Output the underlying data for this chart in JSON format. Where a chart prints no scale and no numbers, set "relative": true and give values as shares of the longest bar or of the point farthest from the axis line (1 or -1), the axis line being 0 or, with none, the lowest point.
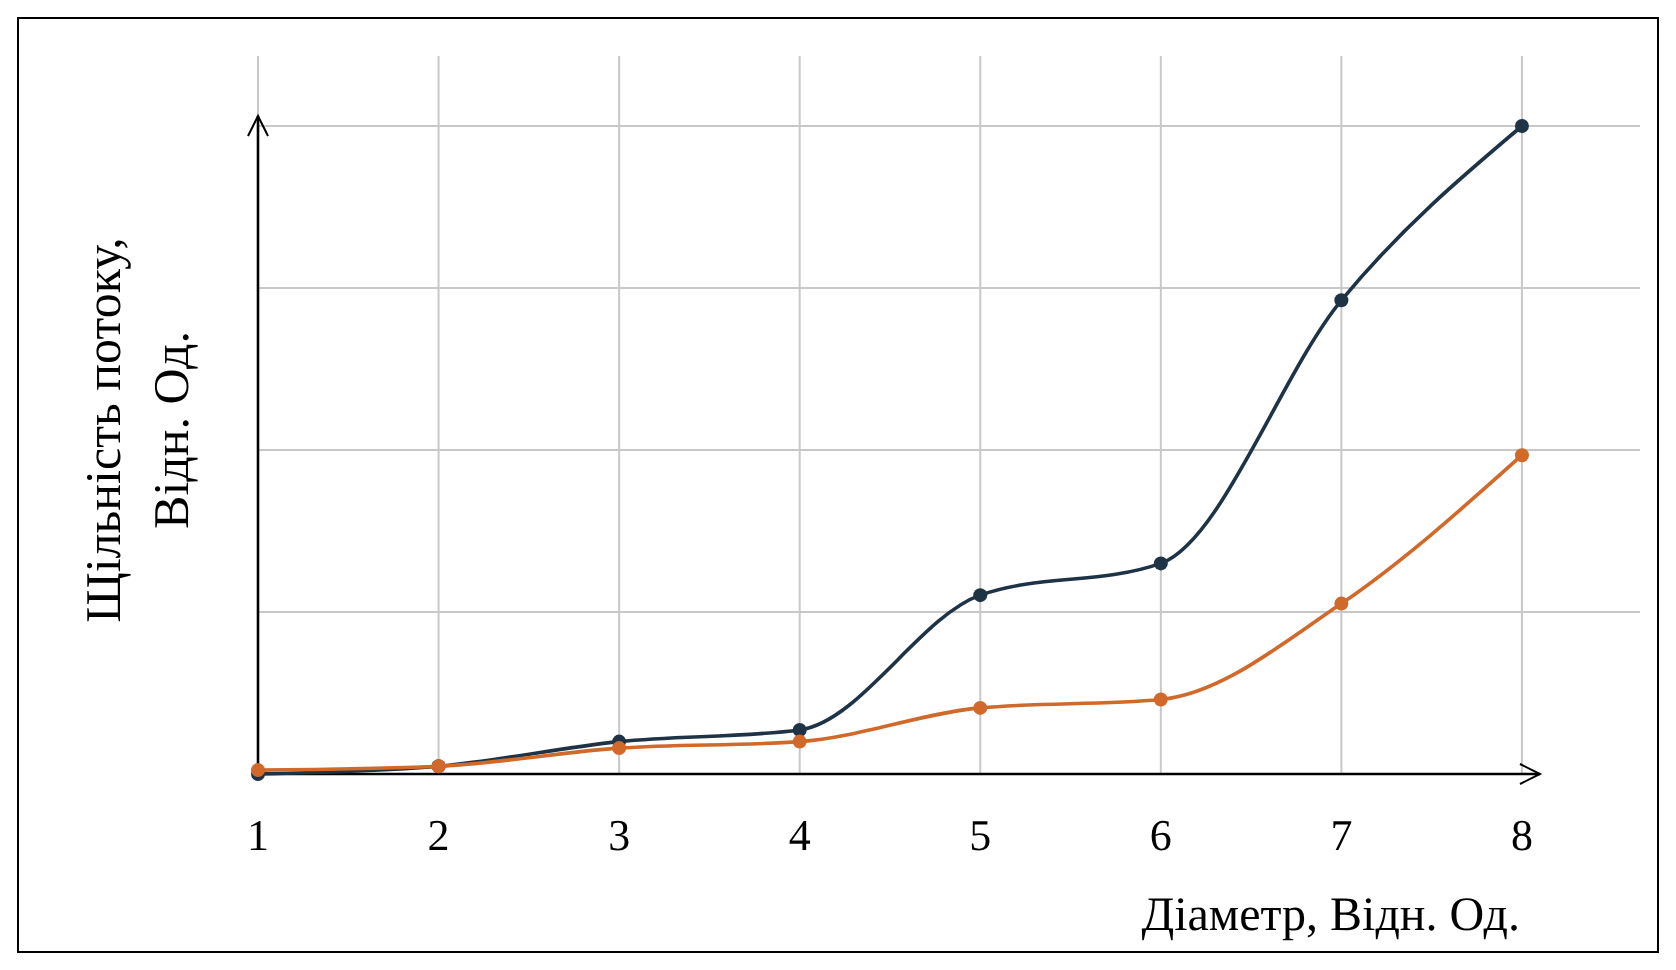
{
  "chart_data": {
    "type": "line",
    "relative": true,
    "xlabel": "Діаметр, Відн. Од.",
    "ylabel": "Щільність потоку, Відн. Од.",
    "x": [
      1,
      2,
      3,
      4,
      5,
      6,
      7,
      8
    ],
    "xlim": [
      1,
      8.1
    ],
    "xticks": [
      1,
      2,
      3,
      4,
      5,
      6,
      7,
      8
    ],
    "grid": true,
    "marker": "circle",
    "line_style": "solid",
    "series": [
      {
        "color": "#1f3347",
        "values": [
          0,
          0.012,
          0.05,
          0.068,
          0.276,
          0.325,
          0.731,
          1
        ]
      },
      {
        "color": "#d0692a",
        "values": [
          0.006,
          0.012,
          0.04,
          0.05,
          0.102,
          0.115,
          0.263,
          0.492
        ]
      }
    ]
  }
}
